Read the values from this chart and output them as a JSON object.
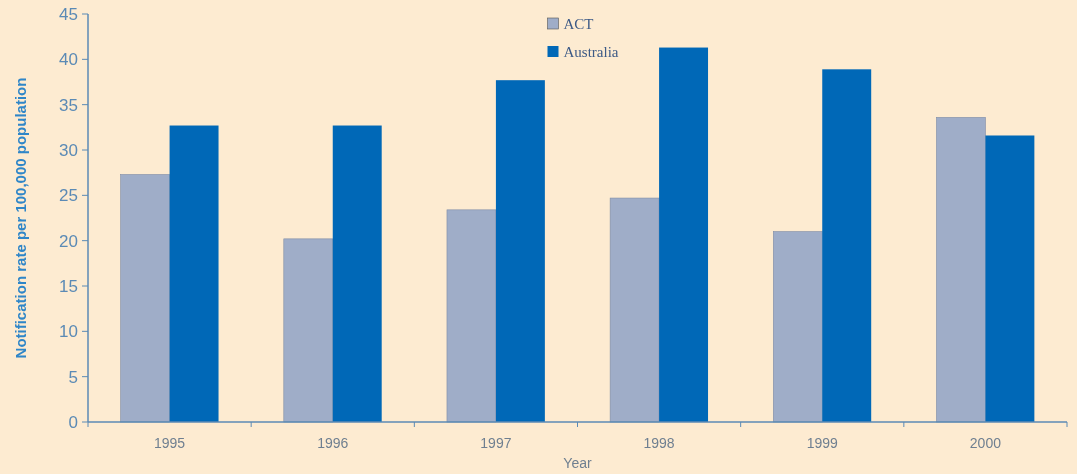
{
  "chart_data": {
    "type": "bar",
    "xlabel": "Year",
    "ylabel": "Notification rate per 100,000 population",
    "categories": [
      "1995",
      "1996",
      "1997",
      "1998",
      "1999",
      "2000"
    ],
    "series": [
      {
        "name": "ACT",
        "color": "#9fadc8",
        "values": [
          27.3,
          20.2,
          23.4,
          24.7,
          21.0,
          33.6
        ]
      },
      {
        "name": "Australia",
        "color": "#0068b7",
        "values": [
          32.7,
          32.7,
          37.7,
          41.3,
          38.9,
          31.6
        ]
      }
    ],
    "ylim": [
      0,
      45
    ],
    "yticks": [
      0,
      5,
      10,
      15,
      20,
      25,
      30,
      35,
      40,
      45
    ],
    "grid": false,
    "legend": "top"
  }
}
